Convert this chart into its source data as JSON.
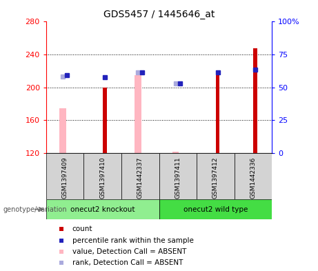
{
  "title": "GDS5457 / 1445646_at",
  "samples": [
    "GSM1397409",
    "GSM1397410",
    "GSM1442337",
    "GSM1397411",
    "GSM1397412",
    "GSM1442336"
  ],
  "group_labels": [
    "onecut2 knockout",
    "onecut2 wild type"
  ],
  "bar_bottom": 120,
  "ylim": [
    120,
    280
  ],
  "y2lim": [
    0,
    100
  ],
  "y_ticks": [
    120,
    160,
    200,
    240,
    280
  ],
  "y2_ticks": [
    0,
    25,
    50,
    75,
    100
  ],
  "red_bar_values": [
    120,
    200,
    120,
    120,
    215,
    248
  ],
  "pink_bar_values": [
    175,
    120,
    215,
    122,
    120,
    120
  ],
  "blue_dot_values": [
    215,
    212,
    218,
    205,
    218,
    222
  ],
  "lilac_dot_values": [
    213,
    120,
    218,
    205,
    120,
    120
  ],
  "red_color": "#CC0000",
  "pink_color": "#FFB6C1",
  "blue_color": "#2222BB",
  "lilac_color": "#AAAADD",
  "plot_bg": "#FFFFFF",
  "cell_bg": "#D3D3D3",
  "group1_color": "#90EE90",
  "group2_color": "#44DD44",
  "legend_items": [
    {
      "label": "count",
      "color": "#CC0000",
      "alpha": 1.0
    },
    {
      "label": "percentile rank within the sample",
      "color": "#2222BB",
      "alpha": 1.0
    },
    {
      "label": "value, Detection Call = ABSENT",
      "color": "#FFB6C1",
      "alpha": 1.0
    },
    {
      "label": "rank, Detection Call = ABSENT",
      "color": "#AAAADD",
      "alpha": 1.0
    }
  ]
}
